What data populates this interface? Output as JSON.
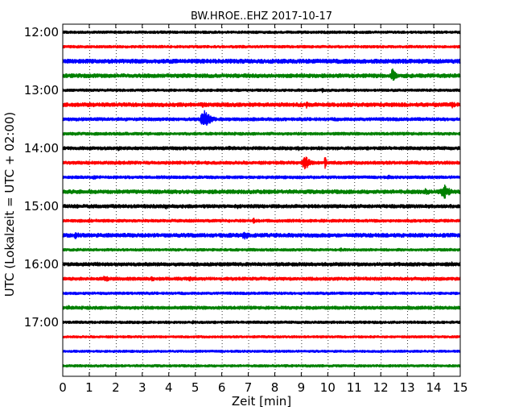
{
  "chart_data": {
    "type": "line",
    "title": "BW.HROE..EHZ 2017-10-17",
    "xlabel": "Zeit  [min]",
    "ylabel": "UTC (Lokalzeit = UTC + 02:00)",
    "xlim": [
      0,
      15
    ],
    "x_ticks": [
      "0",
      "1",
      "2",
      "3",
      "4",
      "5",
      "6",
      "7",
      "8",
      "9",
      "10",
      "11",
      "12",
      "13",
      "14",
      "15"
    ],
    "y_ticks": [
      "12:00",
      "13:00",
      "14:00",
      "15:00",
      "16:00",
      "17:00"
    ],
    "trace_interval_min": 15,
    "grid": true,
    "series": [
      {
        "start": "12:00",
        "color": "#000000",
        "noise": 1.6,
        "events": [
          [
            4.6,
            2.0,
            0.08
          ]
        ]
      },
      {
        "start": "12:15",
        "color": "#ff0000",
        "noise": 1.6,
        "events": []
      },
      {
        "start": "12:30",
        "color": "#0000ff",
        "noise": 2.6,
        "events": [
          [
            12.6,
            3.0,
            0.25
          ],
          [
            14.6,
            2.6,
            0.2
          ]
        ]
      },
      {
        "start": "12:45",
        "color": "#008000",
        "noise": 2.4,
        "events": [
          [
            12.45,
            8.5,
            0.12
          ],
          [
            12.9,
            3.5,
            0.08
          ]
        ]
      },
      {
        "start": "13:00",
        "color": "#000000",
        "noise": 1.6,
        "events": [
          [
            9.8,
            3.0,
            0.05
          ]
        ]
      },
      {
        "start": "13:15",
        "color": "#ff0000",
        "noise": 2.4,
        "events": [
          [
            5.3,
            4.0,
            0.2
          ],
          [
            9.2,
            5.0,
            0.08
          ],
          [
            14.7,
            4.0,
            0.2
          ]
        ]
      },
      {
        "start": "13:30",
        "color": "#0000ff",
        "noise": 2.0,
        "events": [
          [
            5.35,
            11.0,
            0.22
          ],
          [
            1.3,
            3.0,
            0.15
          ]
        ]
      },
      {
        "start": "13:45",
        "color": "#008000",
        "noise": 1.8,
        "events": [
          [
            11.0,
            2.5,
            0.05
          ]
        ]
      },
      {
        "start": "14:00",
        "color": "#000000",
        "noise": 2.0,
        "events": [
          [
            2.1,
            3.5,
            0.1
          ],
          [
            6.3,
            3.0,
            0.05
          ],
          [
            8.9,
            3.0,
            0.05
          ]
        ]
      },
      {
        "start": "14:15",
        "color": "#ff0000",
        "noise": 2.0,
        "events": [
          [
            9.15,
            9.0,
            0.18
          ],
          [
            9.9,
            15.0,
            0.03
          ],
          [
            13.2,
            3.0,
            0.05
          ]
        ]
      },
      {
        "start": "14:30",
        "color": "#0000ff",
        "noise": 1.8,
        "events": [
          [
            1.2,
            3.0,
            0.1
          ],
          [
            12.3,
            3.0,
            0.1
          ]
        ]
      },
      {
        "start": "14:45",
        "color": "#008000",
        "noise": 2.4,
        "events": [
          [
            14.4,
            9.0,
            0.22
          ],
          [
            13.7,
            4.0,
            0.3
          ]
        ]
      },
      {
        "start": "15:00",
        "color": "#000000",
        "noise": 2.2,
        "events": [
          [
            3.9,
            3.5,
            0.2
          ],
          [
            6.6,
            3.0,
            0.05
          ]
        ]
      },
      {
        "start": "15:15",
        "color": "#ff0000",
        "noise": 1.8,
        "events": [
          [
            7.2,
            7.5,
            0.03
          ],
          [
            1.0,
            3.0,
            0.05
          ],
          [
            2.3,
            2.5,
            0.05
          ]
        ]
      },
      {
        "start": "15:30",
        "color": "#0000ff",
        "noise": 2.4,
        "events": [
          [
            0.5,
            5.0,
            0.15
          ],
          [
            6.9,
            5.0,
            0.3
          ]
        ]
      },
      {
        "start": "15:45",
        "color": "#008000",
        "noise": 1.6,
        "events": [
          [
            10.5,
            3.0,
            0.05
          ]
        ]
      },
      {
        "start": "16:00",
        "color": "#000000",
        "noise": 2.2,
        "events": [
          [
            0.6,
            3.0,
            0.05
          ],
          [
            1.3,
            3.0,
            0.1
          ],
          [
            14.7,
            3.0,
            0.2
          ]
        ]
      },
      {
        "start": "16:15",
        "color": "#ff0000",
        "noise": 2.0,
        "events": [
          [
            1.6,
            4.0,
            0.18
          ],
          [
            3.4,
            3.5,
            0.15
          ],
          [
            4.8,
            3.0,
            0.1
          ]
        ]
      },
      {
        "start": "16:30",
        "color": "#0000ff",
        "noise": 1.6,
        "events": []
      },
      {
        "start": "16:45",
        "color": "#008000",
        "noise": 2.0,
        "events": [
          [
            0.2,
            3.5,
            0.1
          ],
          [
            4.9,
            2.5,
            0.05
          ]
        ]
      },
      {
        "start": "17:00",
        "color": "#000000",
        "noise": 1.6,
        "events": [
          [
            4.9,
            3.5,
            0.05
          ]
        ]
      },
      {
        "start": "17:15",
        "color": "#ff0000",
        "noise": 1.4,
        "events": []
      },
      {
        "start": "17:30",
        "color": "#0000ff",
        "noise": 1.4,
        "events": []
      },
      {
        "start": "17:45",
        "color": "#008000",
        "noise": 1.5,
        "events": []
      }
    ]
  }
}
